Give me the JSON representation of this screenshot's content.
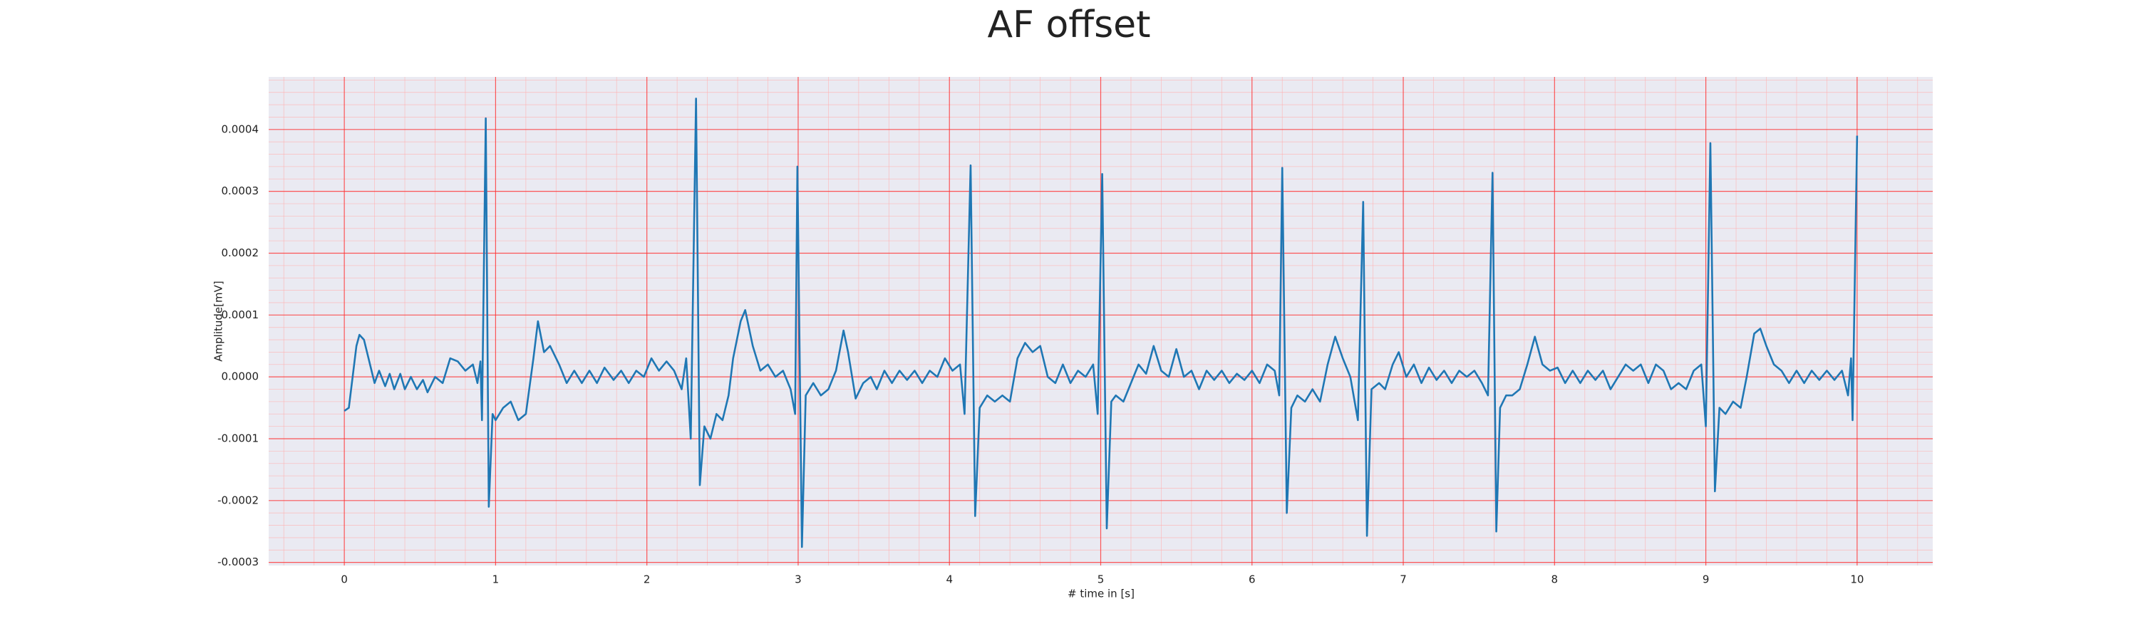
{
  "chart_data": {
    "type": "line",
    "title": "AF offset",
    "xlabel": "# time in [s]",
    "ylabel": "Amplitude[mV]",
    "color": "#1f77b4",
    "grid": true,
    "xlim": [
      -0.5,
      10.5
    ],
    "ylim": [
      -0.000305,
      0.000485
    ],
    "xticks": [
      0,
      1,
      2,
      3,
      4,
      5,
      6,
      7,
      8,
      9,
      10
    ],
    "yticks": [
      {
        "value": -0.0003,
        "label": "-0.0003"
      },
      {
        "value": -0.0002,
        "label": "-0.0002"
      },
      {
        "value": -0.0001,
        "label": "-0.0001"
      },
      {
        "value": 0,
        "label": "0.0000"
      },
      {
        "value": 0.0001,
        "label": "0.0001"
      },
      {
        "value": 0.0002,
        "label": "0.0002"
      },
      {
        "value": 0.0003,
        "label": "0.0003"
      },
      {
        "value": 0.0004,
        "label": "0.0004"
      }
    ],
    "xminorticks": [
      -0.4,
      -0.2,
      0.2,
      0.4,
      0.6,
      0.8,
      1.2,
      1.4,
      1.6,
      1.8,
      2.2,
      2.4,
      2.6,
      2.8,
      3.2,
      3.4,
      3.6,
      3.8,
      4.2,
      4.4,
      4.6,
      4.8,
      5.2,
      5.4,
      5.6,
      5.8,
      6.2,
      6.4,
      6.6,
      6.8,
      7.2,
      7.4,
      7.6,
      7.8,
      8.2,
      8.4,
      8.6,
      8.8,
      9.2,
      9.4,
      9.6,
      9.8,
      10.2,
      10.4
    ],
    "yminorticks": [
      -0.00028,
      -0.00026,
      -0.00024,
      -0.00022,
      -0.00018,
      -0.00016,
      -0.00014,
      -0.00012,
      -8e-05,
      -6e-05,
      -4e-05,
      -2e-05,
      2e-05,
      4e-05,
      6e-05,
      8e-05,
      0.00012,
      0.00014,
      0.00016,
      0.00018,
      0.00022,
      0.00024,
      0.00026,
      0.00028,
      0.00032,
      0.00034,
      0.00036,
      0.00038,
      0.00042,
      0.00044,
      0.00046,
      0.00048
    ],
    "x": [
      0.0,
      0.03,
      0.08,
      0.1,
      0.13,
      0.17,
      0.2,
      0.23,
      0.27,
      0.3,
      0.33,
      0.37,
      0.4,
      0.44,
      0.48,
      0.52,
      0.55,
      0.6,
      0.65,
      0.7,
      0.75,
      0.8,
      0.85,
      0.88,
      0.9,
      0.91,
      0.935,
      0.955,
      0.98,
      1.0,
      1.05,
      1.1,
      1.15,
      1.2,
      1.25,
      1.28,
      1.32,
      1.36,
      1.42,
      1.47,
      1.52,
      1.57,
      1.62,
      1.67,
      1.72,
      1.78,
      1.83,
      1.88,
      1.93,
      1.98,
      2.03,
      2.08,
      2.13,
      2.18,
      2.23,
      2.26,
      2.29,
      2.325,
      2.35,
      2.38,
      2.42,
      2.46,
      2.5,
      2.54,
      2.57,
      2.62,
      2.65,
      2.7,
      2.75,
      2.8,
      2.85,
      2.9,
      2.95,
      2.98,
      2.995,
      3.025,
      3.05,
      3.1,
      3.15,
      3.2,
      3.25,
      3.3,
      3.33,
      3.38,
      3.43,
      3.48,
      3.52,
      3.57,
      3.62,
      3.67,
      3.72,
      3.77,
      3.82,
      3.87,
      3.92,
      3.97,
      4.02,
      4.07,
      4.1,
      4.14,
      4.17,
      4.2,
      4.25,
      4.3,
      4.35,
      4.4,
      4.45,
      4.5,
      4.55,
      4.6,
      4.65,
      4.7,
      4.75,
      4.8,
      4.85,
      4.9,
      4.95,
      4.98,
      5.01,
      5.04,
      5.07,
      5.1,
      5.15,
      5.2,
      5.25,
      5.3,
      5.35,
      5.4,
      5.45,
      5.5,
      5.55,
      5.6,
      5.65,
      5.7,
      5.75,
      5.8,
      5.85,
      5.9,
      5.95,
      6.0,
      6.05,
      6.1,
      6.15,
      6.18,
      6.2,
      6.23,
      6.26,
      6.3,
      6.35,
      6.4,
      6.45,
      6.5,
      6.55,
      6.6,
      6.65,
      6.7,
      6.735,
      6.76,
      6.79,
      6.84,
      6.88,
      6.93,
      6.97,
      7.02,
      7.07,
      7.12,
      7.17,
      7.22,
      7.27,
      7.32,
      7.37,
      7.42,
      7.47,
      7.52,
      7.56,
      7.59,
      7.615,
      7.64,
      7.68,
      7.72,
      7.77,
      7.82,
      7.87,
      7.92,
      7.97,
      8.02,
      8.07,
      8.12,
      8.17,
      8.22,
      8.27,
      8.32,
      8.37,
      8.42,
      8.47,
      8.52,
      8.57,
      8.62,
      8.67,
      8.72,
      8.77,
      8.82,
      8.87,
      8.92,
      8.97,
      9.0,
      9.03,
      9.06,
      9.09,
      9.13,
      9.18,
      9.23,
      9.27,
      9.32,
      9.36,
      9.4,
      9.45,
      9.5,
      9.55,
      9.6,
      9.65,
      9.7,
      9.75,
      9.8,
      9.85,
      9.9,
      9.94,
      9.96,
      9.97,
      10.0
    ],
    "values": [
      -5.5e-05,
      -5e-05,
      5e-05,
      6.8e-05,
      6e-05,
      2e-05,
      -1e-05,
      1e-05,
      -1.5e-05,
      5e-06,
      -2e-05,
      5e-06,
      -2e-05,
      0.0,
      -2e-05,
      -5e-06,
      -2.5e-05,
      0.0,
      -1e-05,
      3e-05,
      2.5e-05,
      1e-05,
      2e-05,
      -1e-05,
      2.5e-05,
      -7e-05,
      0.000418,
      -0.00021,
      -6e-05,
      -7e-05,
      -5e-05,
      -4e-05,
      -7e-05,
      -6e-05,
      3e-05,
      9e-05,
      4e-05,
      5e-05,
      2e-05,
      -1e-05,
      1e-05,
      -1e-05,
      1e-05,
      -1e-05,
      1.5e-05,
      -5e-06,
      1e-05,
      -1e-05,
      1e-05,
      0.0,
      3e-05,
      1e-05,
      2.5e-05,
      1e-05,
      -2e-05,
      3e-05,
      -0.0001,
      0.00045,
      -0.000175,
      -8e-05,
      -0.0001,
      -6e-05,
      -7e-05,
      -3e-05,
      3e-05,
      9e-05,
      0.000108,
      5e-05,
      1e-05,
      2e-05,
      0.0,
      1e-05,
      -2e-05,
      -6e-05,
      0.00034,
      -0.000275,
      -3e-05,
      -1e-05,
      -3e-05,
      -2e-05,
      1e-05,
      7.5e-05,
      4e-05,
      -3.5e-05,
      -1e-05,
      0.0,
      -2e-05,
      1e-05,
      -1e-05,
      1e-05,
      -5e-06,
      1e-05,
      -1e-05,
      1e-05,
      0.0,
      3e-05,
      1e-05,
      2e-05,
      -6e-05,
      0.000342,
      -0.000225,
      -5e-05,
      -3e-05,
      -4e-05,
      -3e-05,
      -4e-05,
      3e-05,
      5.5e-05,
      4e-05,
      5e-05,
      0.0,
      -1e-05,
      2e-05,
      -1e-05,
      1e-05,
      0.0,
      2e-05,
      -6e-05,
      0.000328,
      -0.000245,
      -4e-05,
      -3e-05,
      -4e-05,
      -1e-05,
      2e-05,
      5e-06,
      5e-05,
      1e-05,
      0.0,
      4.5e-05,
      0.0,
      1e-05,
      -2e-05,
      1e-05,
      -5e-06,
      1e-05,
      -1e-05,
      5e-06,
      -5e-06,
      1e-05,
      -1e-05,
      2e-05,
      1e-05,
      -3e-05,
      0.000338,
      -0.00022,
      -5e-05,
      -3e-05,
      -4e-05,
      -2e-05,
      -4e-05,
      2e-05,
      6.5e-05,
      3e-05,
      0.0,
      -7e-05,
      0.000283,
      -0.000257,
      -2e-05,
      -1e-05,
      -2e-05,
      2e-05,
      4e-05,
      0.0,
      2e-05,
      -1e-05,
      1.5e-05,
      -5e-06,
      1e-05,
      -1e-05,
      1e-05,
      0.0,
      1e-05,
      -1e-05,
      -3e-05,
      0.00033,
      -0.00025,
      -5e-05,
      -3e-05,
      -3e-05,
      -2e-05,
      2e-05,
      6.5e-05,
      2e-05,
      1e-05,
      1.5e-05,
      -1e-05,
      1e-05,
      -1e-05,
      1e-05,
      -5e-06,
      1e-05,
      -2e-05,
      0.0,
      2e-05,
      1e-05,
      2e-05,
      -1e-05,
      2e-05,
      1e-05,
      -2e-05,
      -1e-05,
      -2e-05,
      1e-05,
      2e-05,
      -8e-05,
      0.000378,
      -0.000185,
      -5e-05,
      -6e-05,
      -4e-05,
      -5e-05,
      0.0,
      7e-05,
      7.8e-05,
      5e-05,
      2e-05,
      1e-05,
      -1e-05,
      1e-05,
      -1e-05,
      1e-05,
      -5e-06,
      1e-05,
      -5e-06,
      1e-05,
      -3e-05,
      3e-05,
      -7e-05,
      0.00039
    ]
  }
}
